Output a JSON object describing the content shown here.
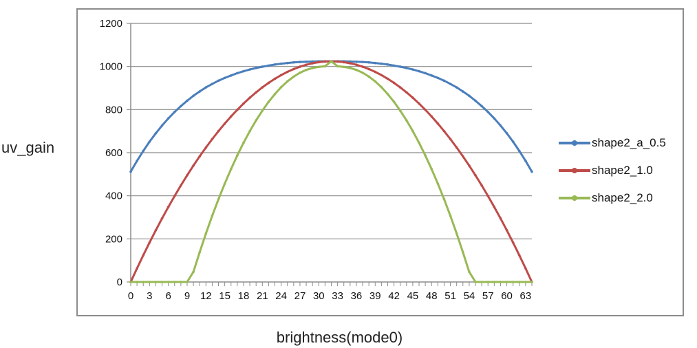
{
  "chart_data": {
    "type": "line",
    "title": "",
    "xlabel": "brightness(mode0)",
    "ylabel": "uv_gain",
    "xlim": [
      0,
      64
    ],
    "ylim": [
      0,
      1200
    ],
    "x_ticks": [
      "0",
      "3",
      "6",
      "9",
      "12",
      "15",
      "18",
      "21",
      "24",
      "27",
      "30",
      "33",
      "36",
      "39",
      "42",
      "45",
      "48",
      "51",
      "54",
      "57",
      "60",
      "63"
    ],
    "y_ticks": [
      "0",
      "200",
      "400",
      "600",
      "800",
      "1000",
      "1200"
    ],
    "grid": "horizontal",
    "legend_position": "right",
    "x": [
      0,
      1,
      2,
      3,
      4,
      5,
      6,
      7,
      8,
      9,
      10,
      11,
      12,
      13,
      14,
      15,
      16,
      17,
      18,
      19,
      20,
      21,
      22,
      23,
      24,
      25,
      26,
      27,
      28,
      29,
      30,
      31,
      32,
      33,
      34,
      35,
      36,
      37,
      38,
      39,
      40,
      41,
      42,
      43,
      44,
      45,
      46,
      47,
      48,
      49,
      50,
      51,
      52,
      53,
      54,
      55,
      56,
      57,
      58,
      59,
      60,
      61,
      62,
      63,
      64
    ],
    "series": [
      {
        "name": "shape2_a_0.5",
        "color": "#4a7ebb",
        "values": [
          512,
          562,
          608,
          651,
          690,
          726,
          759,
          789,
          816,
          841,
          864,
          884,
          903,
          919,
          934,
          947,
          958,
          969,
          978,
          986,
          993,
          999,
          1004,
          1009,
          1013,
          1016,
          1019,
          1021,
          1022,
          1023,
          1024,
          1024,
          1024,
          1024,
          1024,
          1023,
          1022,
          1021,
          1019,
          1016,
          1013,
          1009,
          1004,
          999,
          993,
          986,
          978,
          969,
          958,
          947,
          934,
          919,
          903,
          884,
          864,
          841,
          816,
          789,
          759,
          726,
          690,
          651,
          608,
          562,
          512
        ]
      },
      {
        "name": "shape2_1.0",
        "color": "#be4b48",
        "values": [
          0,
          63,
          124,
          183,
          240,
          295,
          348,
          399,
          448,
          495,
          540,
          583,
          624,
          663,
          700,
          735,
          768,
          799,
          828,
          855,
          880,
          903,
          924,
          943,
          960,
          975,
          988,
          999,
          1008,
          1015,
          1020,
          1023,
          1024,
          1023,
          1020,
          1015,
          1008,
          999,
          988,
          975,
          960,
          943,
          924,
          903,
          880,
          855,
          828,
          799,
          768,
          735,
          700,
          663,
          624,
          583,
          540,
          495,
          448,
          399,
          348,
          295,
          240,
          183,
          124,
          63,
          0
        ]
      },
      {
        "name": "shape2_2.0",
        "color": "#98b954",
        "values": [
          0,
          0,
          0,
          0,
          0,
          0,
          0,
          0,
          0,
          0,
          47,
          138,
          225,
          307,
          384,
          456,
          524,
          587,
          646,
          700,
          750,
          795,
          836,
          872,
          904,
          931,
          953,
          971,
          984,
          993,
          998,
          1001,
          1024,
          1001,
          998,
          993,
          984,
          971,
          953,
          931,
          904,
          872,
          836,
          795,
          750,
          700,
          646,
          587,
          524,
          456,
          384,
          307,
          225,
          138,
          47,
          0,
          0,
          0,
          0,
          0,
          0,
          0,
          0,
          0,
          0
        ]
      }
    ]
  }
}
